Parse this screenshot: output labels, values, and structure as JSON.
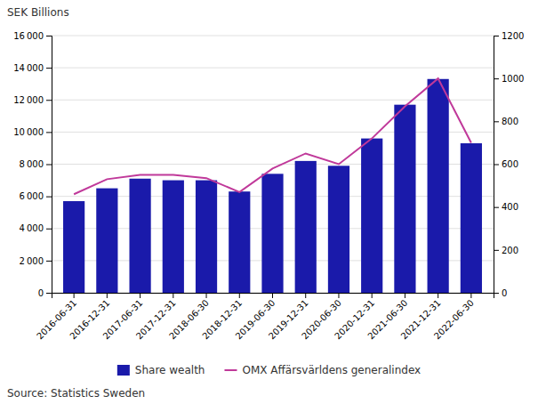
{
  "chart_data": {
    "type": "bar",
    "categories": [
      "2016-06-31",
      "2016-12-31",
      "2017-06-31",
      "2017-12-31",
      "2018-06-30",
      "2018-12-31",
      "2019-06-30",
      "2019-12-31",
      "2020-06-30",
      "2020-12-31",
      "2021-06-30",
      "2021-12-31",
      "2022-06-30"
    ],
    "series": [
      {
        "name": "Share wealth",
        "type": "bar",
        "color": "#1a1aaa",
        "values": [
          5700,
          6500,
          7100,
          7000,
          7000,
          6300,
          7400,
          8200,
          7900,
          9600,
          11700,
          13300,
          9300
        ]
      },
      {
        "name": "OMX Affärsvärldens generalindex",
        "type": "line",
        "color": "#c0399a",
        "axis": "y2",
        "values": [
          460,
          530,
          550,
          550,
          535,
          470,
          580,
          650,
          600,
          720,
          870,
          1000,
          700
        ]
      }
    ],
    "ylabel": "SEK Billions",
    "ylim": [
      0,
      16000
    ],
    "yticks": [
      0,
      {
        "value": 2000,
        "label": "2 000"
      },
      {
        "value": 4000,
        "label": "4 000"
      },
      {
        "value": 6000,
        "label": "6 000"
      },
      {
        "value": 8000,
        "label": "8 000"
      },
      {
        "value": 10000,
        "label": "10 000"
      },
      {
        "value": 12000,
        "label": "12 000"
      },
      {
        "value": 14000,
        "label": "14 000"
      },
      {
        "value": 16000,
        "label": "16 000"
      }
    ],
    "y2lim": [
      0,
      1200
    ],
    "y2ticks": [
      0,
      200,
      400,
      600,
      800,
      1000,
      1200
    ],
    "grid": true,
    "legend": "bottom",
    "annotations": [
      "Source: Statistics Sweden"
    ]
  }
}
